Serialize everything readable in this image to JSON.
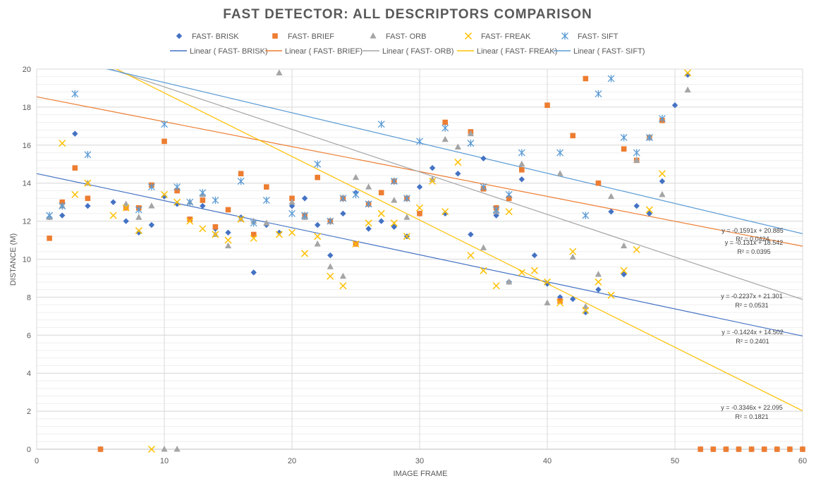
{
  "chart_data": {
    "type": "scatter",
    "title": "FAST DETECTOR: ALL DESCRIPTORS COMPARISON",
    "xlabel": "IMAGE FRAME",
    "ylabel": "DISTANCE (M)",
    "xlim": [
      0,
      60
    ],
    "ylim": [
      0,
      20
    ],
    "xticks": [
      0,
      10,
      20,
      30,
      40,
      50,
      60
    ],
    "yticks": [
      0,
      2,
      4,
      6,
      8,
      10,
      12,
      14,
      16,
      18,
      20
    ],
    "grid": true,
    "legend_position": "top",
    "series": [
      {
        "name": "FAST- BRISK",
        "marker": "diamond",
        "color": "#4472C4",
        "points": [
          [
            1,
            12.2
          ],
          [
            2,
            12.3
          ],
          [
            3,
            16.6
          ],
          [
            4,
            12.8
          ],
          [
            5,
            0
          ],
          [
            6,
            13.0
          ],
          [
            7,
            12.0
          ],
          [
            8,
            11.4
          ],
          [
            9,
            11.8
          ],
          [
            10,
            13.3
          ],
          [
            11,
            12.9
          ],
          [
            12,
            12.1
          ],
          [
            13,
            12.8
          ],
          [
            14,
            11.6
          ],
          [
            15,
            11.4
          ],
          [
            16,
            12.2
          ],
          [
            17,
            9.3
          ],
          [
            18,
            11.8
          ],
          [
            19,
            11.4
          ],
          [
            20,
            12.8
          ],
          [
            21,
            13.2
          ],
          [
            22,
            11.8
          ],
          [
            23,
            10.2
          ],
          [
            24,
            12.4
          ],
          [
            25,
            13.5
          ],
          [
            26,
            11.6
          ],
          [
            27,
            12.0
          ],
          [
            28,
            11.7
          ],
          [
            29,
            11.2
          ],
          [
            30,
            13.8
          ],
          [
            31,
            14.8
          ],
          [
            32,
            12.4
          ],
          [
            33,
            14.5
          ],
          [
            34,
            11.3
          ],
          [
            35,
            15.3
          ],
          [
            36,
            12.3
          ],
          [
            37,
            8.8
          ],
          [
            38,
            14.2
          ],
          [
            39,
            10.2
          ],
          [
            40,
            8.7
          ],
          [
            41,
            8.0
          ],
          [
            42,
            7.9
          ],
          [
            43,
            7.2
          ],
          [
            44,
            8.4
          ],
          [
            45,
            12.5
          ],
          [
            46,
            9.2
          ],
          [
            47,
            12.8
          ],
          [
            48,
            12.4
          ],
          [
            49,
            14.1
          ],
          [
            50,
            18.1
          ],
          [
            51,
            19.7
          ],
          [
            52,
            0
          ],
          [
            53,
            0
          ],
          [
            54,
            0
          ],
          [
            55,
            0
          ],
          [
            56,
            0
          ],
          [
            57,
            0
          ],
          [
            58,
            0
          ],
          [
            59,
            0
          ],
          [
            60,
            0
          ]
        ]
      },
      {
        "name": "FAST- BRIEF",
        "marker": "square",
        "color": "#ED7D31",
        "points": [
          [
            1,
            11.1
          ],
          [
            2,
            13.0
          ],
          [
            3,
            14.8
          ],
          [
            4,
            13.2
          ],
          [
            5,
            0
          ],
          [
            7,
            12.7
          ],
          [
            8,
            12.7
          ],
          [
            9,
            13.9
          ],
          [
            10,
            16.2
          ],
          [
            11,
            13.6
          ],
          [
            12,
            12.1
          ],
          [
            13,
            13.1
          ],
          [
            14,
            11.7
          ],
          [
            15,
            12.6
          ],
          [
            16,
            14.5
          ],
          [
            17,
            11.3
          ],
          [
            18,
            13.8
          ],
          [
            20,
            13.2
          ],
          [
            21,
            12.3
          ],
          [
            22,
            14.3
          ],
          [
            23,
            12.0
          ],
          [
            24,
            13.2
          ],
          [
            25,
            10.8
          ],
          [
            26,
            12.9
          ],
          [
            27,
            13.5
          ],
          [
            28,
            14.1
          ],
          [
            29,
            13.2
          ],
          [
            30,
            12.4
          ],
          [
            32,
            17.2
          ],
          [
            34,
            16.7
          ],
          [
            35,
            13.7
          ],
          [
            36,
            12.7
          ],
          [
            37,
            13.2
          ],
          [
            38,
            14.7
          ],
          [
            40,
            18.1
          ],
          [
            41,
            7.8
          ],
          [
            42,
            16.5
          ],
          [
            43,
            19.5
          ],
          [
            44,
            14.0
          ],
          [
            46,
            15.8
          ],
          [
            47,
            15.2
          ],
          [
            48,
            16.4
          ],
          [
            49,
            17.3
          ],
          [
            52,
            0
          ],
          [
            53,
            0
          ],
          [
            54,
            0
          ],
          [
            55,
            0
          ],
          [
            56,
            0
          ],
          [
            57,
            0
          ],
          [
            58,
            0
          ],
          [
            59,
            0
          ],
          [
            60,
            0
          ]
        ]
      },
      {
        "name": "FAST- ORB",
        "marker": "triangle",
        "color": "#A5A5A5",
        "points": [
          [
            1,
            12.2
          ],
          [
            2,
            12.8
          ],
          [
            4,
            14.0
          ],
          [
            7,
            12.9
          ],
          [
            8,
            12.2
          ],
          [
            9,
            12.8
          ],
          [
            10,
            0
          ],
          [
            11,
            0
          ],
          [
            12,
            13.0
          ],
          [
            13,
            13.4
          ],
          [
            14,
            11.3
          ],
          [
            15,
            10.7
          ],
          [
            16,
            12.1
          ],
          [
            17,
            12.0
          ],
          [
            18,
            11.9
          ],
          [
            19,
            19.8
          ],
          [
            20,
            13.0
          ],
          [
            21,
            12.2
          ],
          [
            22,
            10.8
          ],
          [
            23,
            9.6
          ],
          [
            24,
            9.1
          ],
          [
            25,
            14.3
          ],
          [
            26,
            13.8
          ],
          [
            28,
            13.1
          ],
          [
            29,
            12.2
          ],
          [
            31,
            14.2
          ],
          [
            32,
            16.3
          ],
          [
            33,
            15.9
          ],
          [
            34,
            16.6
          ],
          [
            35,
            10.6
          ],
          [
            36,
            12.5
          ],
          [
            37,
            8.8
          ],
          [
            38,
            15.0
          ],
          [
            40,
            7.7
          ],
          [
            41,
            14.5
          ],
          [
            42,
            10.1
          ],
          [
            43,
            7.5
          ],
          [
            44,
            9.2
          ],
          [
            45,
            13.3
          ],
          [
            46,
            10.7
          ],
          [
            47,
            15.2
          ],
          [
            48,
            16.4
          ],
          [
            49,
            13.4
          ],
          [
            51,
            18.9
          ]
        ]
      },
      {
        "name": "FAST- FREAK",
        "marker": "x",
        "color": "#FFC000",
        "points": [
          [
            2,
            16.1
          ],
          [
            3,
            13.4
          ],
          [
            4,
            14.0
          ],
          [
            6,
            12.3
          ],
          [
            7,
            12.7
          ],
          [
            8,
            11.5
          ],
          [
            9,
            0
          ],
          [
            10,
            13.4
          ],
          [
            11,
            13.0
          ],
          [
            12,
            12.0
          ],
          [
            13,
            11.6
          ],
          [
            14,
            11.3
          ],
          [
            15,
            11.0
          ],
          [
            16,
            12.1
          ],
          [
            17,
            11.1
          ],
          [
            19,
            11.3
          ],
          [
            20,
            11.4
          ],
          [
            21,
            10.3
          ],
          [
            22,
            11.2
          ],
          [
            23,
            9.1
          ],
          [
            24,
            8.6
          ],
          [
            25,
            10.8
          ],
          [
            26,
            11.9
          ],
          [
            27,
            12.4
          ],
          [
            28,
            11.9
          ],
          [
            29,
            11.2
          ],
          [
            30,
            12.7
          ],
          [
            31,
            14.1
          ],
          [
            32,
            12.5
          ],
          [
            33,
            15.1
          ],
          [
            34,
            10.2
          ],
          [
            35,
            9.4
          ],
          [
            36,
            8.6
          ],
          [
            37,
            12.5
          ],
          [
            38,
            9.3
          ],
          [
            39,
            9.4
          ],
          [
            40,
            8.8
          ],
          [
            41,
            7.7
          ],
          [
            42,
            10.4
          ],
          [
            43,
            7.3
          ],
          [
            44,
            8.8
          ],
          [
            45,
            8.1
          ],
          [
            46,
            9.4
          ],
          [
            47,
            10.5
          ],
          [
            48,
            12.6
          ],
          [
            49,
            14.5
          ],
          [
            51,
            19.8
          ]
        ]
      },
      {
        "name": "FAST- SIFT",
        "marker": "star",
        "color": "#5B9BD5",
        "points": [
          [
            1,
            12.3
          ],
          [
            2,
            12.8
          ],
          [
            3,
            18.7
          ],
          [
            4,
            15.5
          ],
          [
            8,
            12.6
          ],
          [
            9,
            13.8
          ],
          [
            10,
            17.1
          ],
          [
            11,
            13.8
          ],
          [
            12,
            13.0
          ],
          [
            13,
            13.5
          ],
          [
            14,
            13.1
          ],
          [
            16,
            14.1
          ],
          [
            17,
            11.9
          ],
          [
            18,
            13.1
          ],
          [
            20,
            12.4
          ],
          [
            21,
            12.3
          ],
          [
            22,
            15.0
          ],
          [
            23,
            12.0
          ],
          [
            24,
            13.2
          ],
          [
            25,
            13.4
          ],
          [
            26,
            12.9
          ],
          [
            27,
            17.1
          ],
          [
            28,
            14.1
          ],
          [
            29,
            13.2
          ],
          [
            30,
            16.2
          ],
          [
            32,
            16.9
          ],
          [
            34,
            16.1
          ],
          [
            35,
            13.8
          ],
          [
            36,
            12.6
          ],
          [
            37,
            13.4
          ],
          [
            38,
            15.6
          ],
          [
            41,
            15.6
          ],
          [
            43,
            12.3
          ],
          [
            44,
            18.7
          ],
          [
            45,
            19.5
          ],
          [
            46,
            16.4
          ],
          [
            47,
            15.6
          ],
          [
            48,
            16.4
          ],
          [
            49,
            17.4
          ]
        ]
      }
    ],
    "trendlines": [
      {
        "name": "Linear ( FAST- BRISK)",
        "color": "#4472C4",
        "slope": -0.1424,
        "intercept": 14.502,
        "equation": "y = -0.1424x + 14.502",
        "r2_label": "R² = 0.2401"
      },
      {
        "name": "Linear ( FAST- BRIEF)",
        "color": "#ED7D31",
        "slope": -0.131,
        "intercept": 18.542,
        "equation": "y = -0.131x + 18.542",
        "r2_label": "R² = 0.0395"
      },
      {
        "name": "Linear ( FAST- ORB)",
        "color": "#A5A5A5",
        "slope": -0.2237,
        "intercept": 21.301,
        "equation": "y = -0.2237x + 21.301",
        "r2_label": "R² = 0.0531"
      },
      {
        "name": "Linear ( FAST- FREAK)",
        "color": "#FFC000",
        "slope": -0.3346,
        "intercept": 22.095,
        "equation": "y = -0.3346x + 22.095",
        "r2_label": "R² = 0.1821"
      },
      {
        "name": "Linear ( FAST- SIFT)",
        "color": "#5B9BD5",
        "slope": -0.1591,
        "intercept": 20.885,
        "equation": "y = -0.1591x + 20.885",
        "r2_label": "R² = 0.0424"
      }
    ]
  }
}
